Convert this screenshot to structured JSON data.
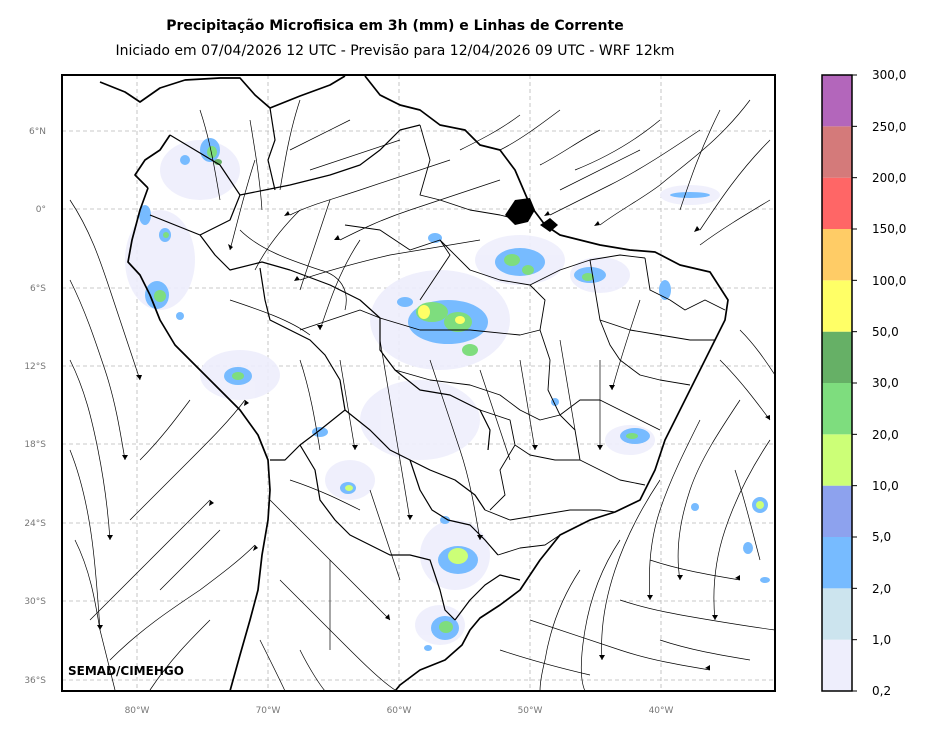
{
  "title": "Precipitação Microfisica em 3h (mm) e Linhas de Corrente",
  "subtitle": "Iniciado em 07/04/2026 12 UTC - Previsão para 12/04/2026 09 UTC - WRF 12km",
  "credit": "SEMAD/CIMEHGO",
  "latitude_labels": [
    "6°N",
    "0°",
    "6°S",
    "12°S",
    "18°S",
    "24°S",
    "30°S",
    "36°S"
  ],
  "longitude_labels": [
    "80°W",
    "70°W",
    "60°W",
    "50°W",
    "40°W"
  ],
  "colorbar": {
    "labels": [
      "0,2",
      "1,0",
      "2,0",
      "5,0",
      "10,0",
      "20,0",
      "30,0",
      "50,0",
      "100,0",
      "150,0",
      "200,0",
      "250,0",
      "300,0"
    ],
    "colors": [
      "#eeeefc",
      "#cce4ee",
      "#77bbff",
      "#8da2ee",
      "#ccff77",
      "#7edd7e",
      "#66b066",
      "#ffff66",
      "#ffcc66",
      "#ff6666",
      "#d47a7a",
      "#b366bb"
    ]
  }
}
